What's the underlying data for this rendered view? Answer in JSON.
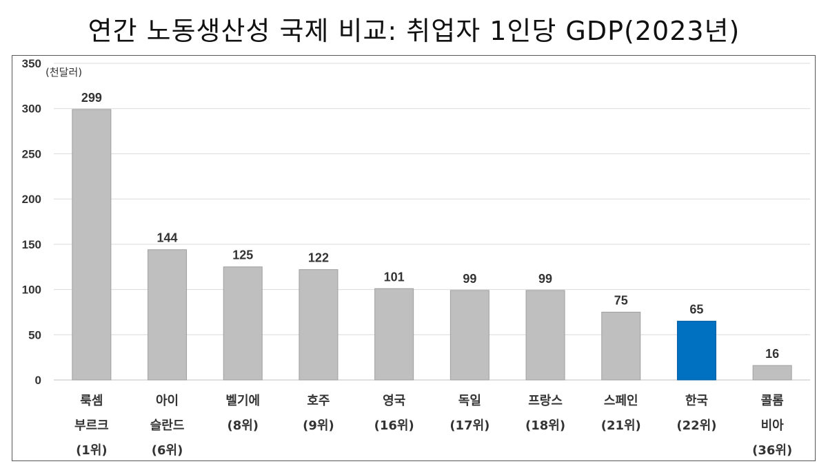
{
  "chart_data": {
    "type": "bar",
    "title": "연간 노동생산성 국제 비교: 취업자 1인당 GDP(2023년)",
    "unit_label": "(천달러)",
    "ylim": [
      0,
      350
    ],
    "yticks": [
      "0",
      "50",
      "100",
      "150",
      "200",
      "250",
      "300",
      "350"
    ],
    "grid": true,
    "categories": [
      {
        "lines": [
          "룩셈",
          "부르크",
          "(1위)"
        ],
        "value": 299
      },
      {
        "lines": [
          "아이",
          "슬란드",
          "(6위)"
        ],
        "value": 144
      },
      {
        "lines": [
          "벨기에",
          "(8위)"
        ],
        "value": 125
      },
      {
        "lines": [
          "호주",
          "(9위)"
        ],
        "value": 122
      },
      {
        "lines": [
          "영국",
          "(16위)"
        ],
        "value": 101
      },
      {
        "lines": [
          "독일",
          "(17위)"
        ],
        "value": 99
      },
      {
        "lines": [
          "프랑스",
          "(18위)"
        ],
        "value": 99
      },
      {
        "lines": [
          "스페인",
          "(21위)"
        ],
        "value": 75
      },
      {
        "lines": [
          "한국",
          "(22위)"
        ],
        "value": 65
      },
      {
        "lines": [
          "콜롬",
          "비아",
          "(36위)"
        ],
        "value": 16
      }
    ],
    "colors": {
      "default": "#bfbfbf",
      "highlight": "#0070c0",
      "highlight_index": 8
    }
  }
}
